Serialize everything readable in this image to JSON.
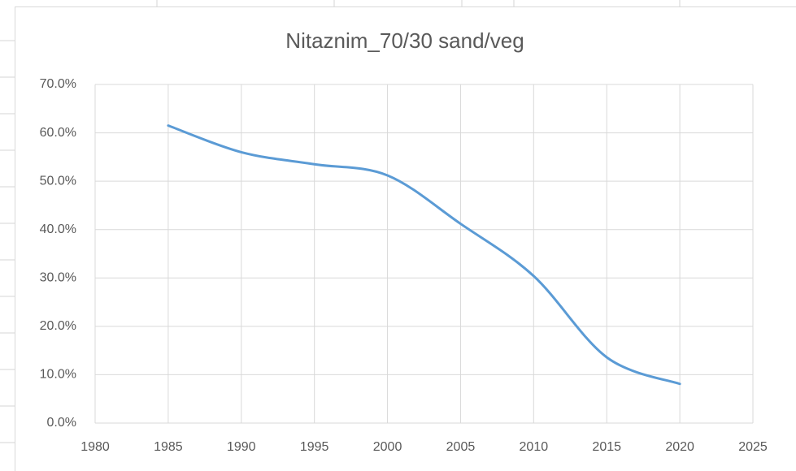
{
  "chart_data": {
    "type": "line",
    "title": "Nitaznim_70/30 sand/veg",
    "x": [
      1985,
      1990,
      1995,
      2000,
      2005,
      2010,
      2015,
      2020
    ],
    "series": [
      {
        "name": "Nitaznim_70/30 sand/veg",
        "color": "#5b9bd5",
        "values": [
          61.5,
          56,
          53.5,
          51.2,
          41.2,
          30.4,
          13.6,
          8.1
        ]
      }
    ],
    "xlim": [
      1980,
      2025
    ],
    "xticks": [
      1980,
      1985,
      1990,
      1995,
      2000,
      2005,
      2010,
      2015,
      2020,
      2025
    ],
    "ylim": [
      0,
      70
    ],
    "yticks": [
      {
        "value": 0,
        "label": "0.0%"
      },
      {
        "value": 10,
        "label": "10.0%"
      },
      {
        "value": 20,
        "label": "20.0%"
      },
      {
        "value": 30,
        "label": "30.0%"
      },
      {
        "value": 40,
        "label": "40.0%"
      },
      {
        "value": 50,
        "label": "50.0%"
      },
      {
        "value": 60,
        "label": "60.0%"
      },
      {
        "value": 70,
        "label": "70.0%"
      }
    ],
    "grid": true,
    "smooth": true
  }
}
